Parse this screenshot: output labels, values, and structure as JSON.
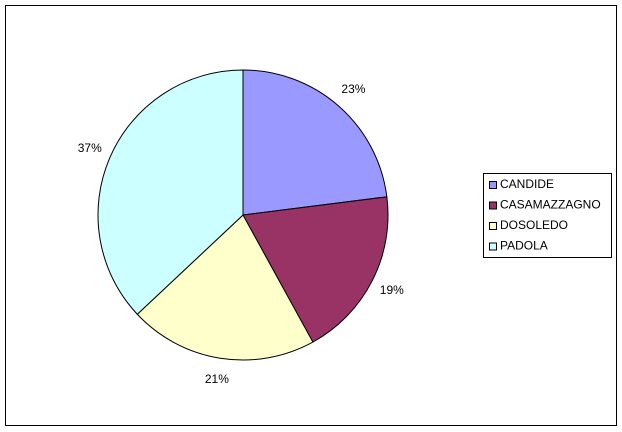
{
  "chart_data": {
    "type": "pie",
    "categories": [
      "CANDIDE",
      "CASAMAZZAGNO",
      "DOSOLEDO",
      "PADOLA"
    ],
    "values": [
      23,
      19,
      21,
      37
    ],
    "value_labels": [
      "23%",
      "19%",
      "21%",
      "37%"
    ],
    "colors": [
      "#9999ff",
      "#993366",
      "#ffffcc",
      "#ccffff"
    ],
    "legend": "right"
  }
}
